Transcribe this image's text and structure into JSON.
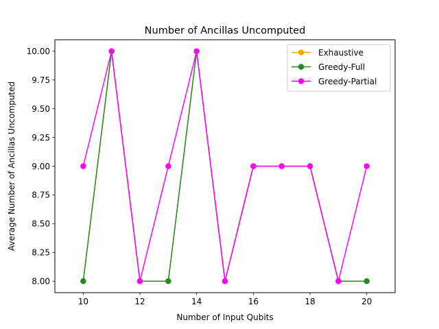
{
  "chart_data": {
    "type": "line",
    "title": "Number of Ancillas Uncomputed",
    "xlabel": "Number of Input Qubits",
    "ylabel": "Average Number of Ancillas Uncomputed",
    "xlim": [
      9,
      21
    ],
    "ylim": [
      7.9,
      10.1
    ],
    "xticks": [
      "10",
      "12",
      "14",
      "16",
      "18",
      "20"
    ],
    "yticks": [
      "8.00",
      "8.25",
      "8.50",
      "8.75",
      "9.00",
      "9.25",
      "9.50",
      "9.75",
      "10.00"
    ],
    "x": [
      10,
      11,
      12,
      13,
      14,
      15,
      16,
      17,
      18,
      19,
      20
    ],
    "grid": false,
    "legend_position": "upper right",
    "series": [
      {
        "name": "Exhaustive",
        "color": "#ffa500",
        "values": [
          8,
          10,
          8,
          8,
          10,
          8,
          9,
          9,
          9,
          8,
          8
        ]
      },
      {
        "name": "Greedy-Full",
        "color": "#228b22",
        "values": [
          8,
          10,
          8,
          8,
          10,
          8,
          9,
          9,
          9,
          8,
          8
        ]
      },
      {
        "name": "Greedy-Partial",
        "color": "#ff00ff",
        "values": [
          9,
          10,
          8,
          9,
          10,
          8,
          9,
          9,
          9,
          8,
          9
        ]
      }
    ]
  }
}
